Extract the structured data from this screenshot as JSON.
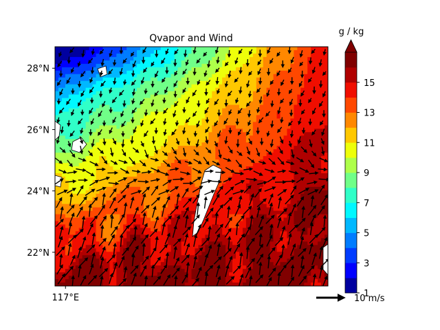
{
  "chart_data": {
    "type": "heatmap",
    "title": "Qvapor and Wind",
    "variable": "Qvapor",
    "overlay": "wind vectors (quiver)",
    "map": {
      "lon_ticks": [
        117
      ],
      "lon_tick_labels": [
        "117°E"
      ],
      "lat_ticks": [
        22,
        24,
        26,
        28
      ],
      "lat_tick_labels": [
        "22°N",
        "24°N",
        "26°N",
        "28°N"
      ],
      "lon_range": [
        116.8,
        122.0
      ],
      "lat_range": [
        20.9,
        28.7
      ],
      "land_mask_color": "#ffffff",
      "coastline_color": "#000000"
    },
    "colorbar": {
      "label": "g / kg",
      "min": 1,
      "max": 17,
      "level_step": 1,
      "extend": "max",
      "tick_values": [
        1,
        3,
        5,
        7,
        9,
        11,
        13,
        15
      ],
      "tick_labels": [
        "1",
        "3",
        "5",
        "7",
        "9",
        "11",
        "13",
        "15"
      ],
      "colormap": "jet",
      "colors": [
        "#00009f",
        "#0000ff",
        "#003cff",
        "#007cff",
        "#00b8ff",
        "#00f8ff",
        "#30ffc8",
        "#70ff88",
        "#aeff4a",
        "#eeff0a",
        "#ffc800",
        "#ff8800",
        "#ff4800",
        "#f00e00",
        "#b00000",
        "#800000"
      ],
      "extend_color": "#800000"
    },
    "quiver_key": {
      "label": "10 m/s",
      "speed": 10
    },
    "field_description": {
      "north_west_values": [
        6,
        10
      ],
      "central_values": [
        8,
        12
      ],
      "south_east_values": [
        13,
        16
      ]
    },
    "wind": {
      "north_half_direction_deg": 200,
      "south_half_direction_deg": 25,
      "typical_speed": 8
    }
  }
}
